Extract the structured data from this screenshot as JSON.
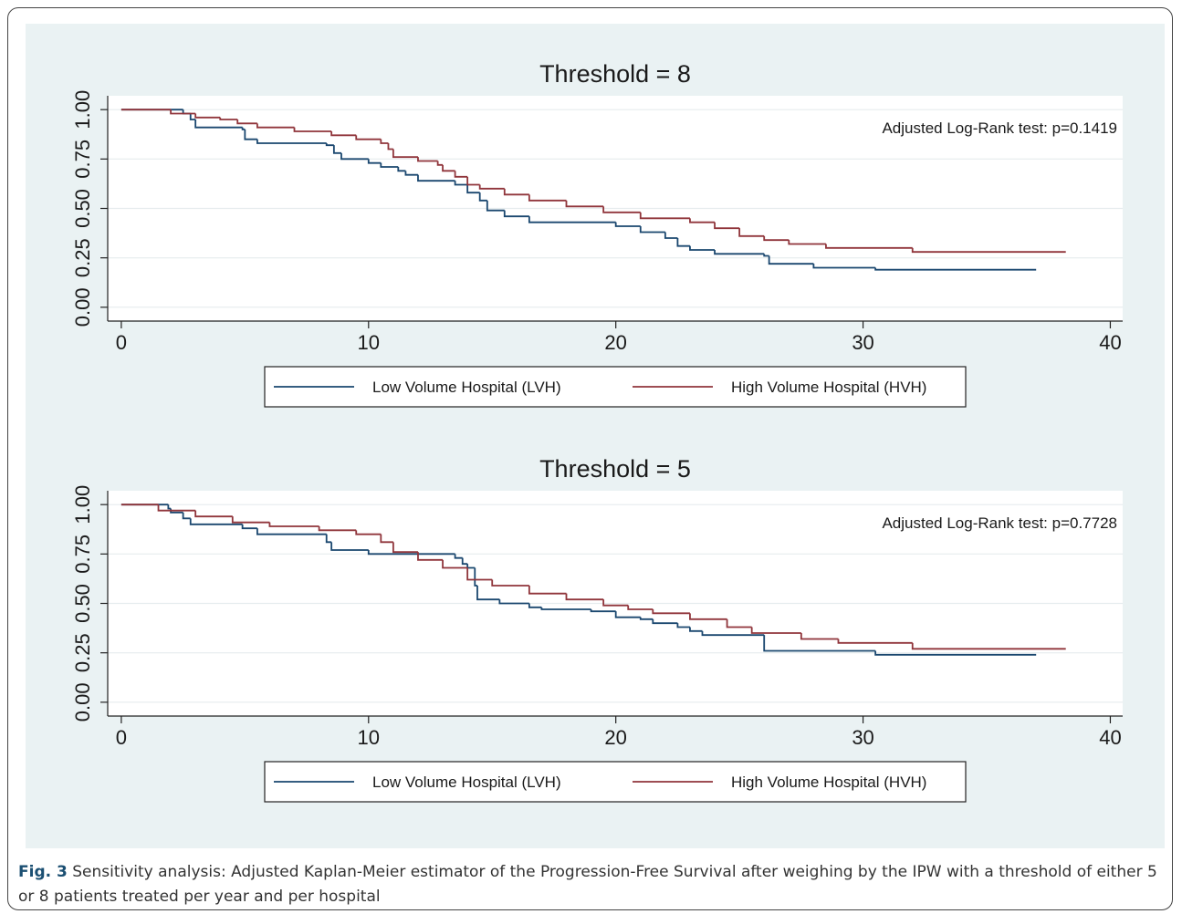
{
  "chart_data": [
    {
      "type": "step",
      "title": "Threshold = 8",
      "annotation": "Adjusted Log-Rank test: p=0.1419",
      "xlim": [
        -0.55,
        40.5
      ],
      "xticks": [
        0,
        10,
        20,
        30,
        40
      ],
      "ylim": [
        -0.07,
        1.07
      ],
      "yticks": [
        {
          "value": 0,
          "label": "0.00"
        },
        {
          "value": 0.25,
          "label": "0.25"
        },
        {
          "value": 0.5,
          "label": "0.50"
        },
        {
          "value": 0.75,
          "label": "0.75"
        },
        {
          "value": 1,
          "label": "1.00"
        }
      ],
      "grid": true,
      "legend": "bottom",
      "series": [
        {
          "name": "Low Volume Hospital (LVH)",
          "color": "#1a476f",
          "x": [
            0,
            2.5,
            2.8,
            3,
            4.9,
            5,
            5.5,
            8.3,
            8.6,
            8.9,
            10,
            10.5,
            11.2,
            11.5,
            12,
            13.5,
            14,
            14.5,
            14.8,
            15.5,
            16.5,
            20,
            21,
            22,
            22.5,
            23,
            24,
            26,
            26.2,
            28,
            30.5,
            37
          ],
          "values": [
            1.0,
            0.98,
            0.95,
            0.91,
            0.9,
            0.85,
            0.83,
            0.82,
            0.78,
            0.75,
            0.73,
            0.71,
            0.69,
            0.67,
            0.64,
            0.62,
            0.58,
            0.54,
            0.49,
            0.46,
            0.43,
            0.41,
            0.38,
            0.35,
            0.31,
            0.29,
            0.27,
            0.26,
            0.22,
            0.2,
            0.19,
            0.19
          ]
        },
        {
          "name": "High Volume Hospital (HVH)",
          "color": "#90353b",
          "x": [
            0,
            2,
            3,
            4,
            4.7,
            5.5,
            7,
            8.5,
            9.5,
            10.5,
            10.8,
            11,
            12,
            12.8,
            13,
            13.5,
            14,
            14.5,
            15.5,
            16.5,
            18,
            19.5,
            21,
            23,
            24,
            25,
            26,
            27,
            28.5,
            32,
            38.2
          ],
          "values": [
            1.0,
            0.98,
            0.96,
            0.95,
            0.93,
            0.91,
            0.89,
            0.87,
            0.85,
            0.83,
            0.8,
            0.76,
            0.74,
            0.72,
            0.69,
            0.66,
            0.62,
            0.6,
            0.57,
            0.54,
            0.51,
            0.48,
            0.45,
            0.43,
            0.4,
            0.36,
            0.34,
            0.32,
            0.3,
            0.28,
            0.28
          ]
        }
      ]
    },
    {
      "type": "step",
      "title": "Threshold = 5",
      "annotation": "Adjusted Log-Rank test: p=0.7728",
      "xlim": [
        -0.55,
        40.5
      ],
      "xticks": [
        0,
        10,
        20,
        30,
        40
      ],
      "ylim": [
        -0.07,
        1.07
      ],
      "yticks": [
        {
          "value": 0,
          "label": "0.00"
        },
        {
          "value": 0.25,
          "label": "0.25"
        },
        {
          "value": 0.5,
          "label": "0.50"
        },
        {
          "value": 0.75,
          "label": "0.75"
        },
        {
          "value": 1,
          "label": "1.00"
        }
      ],
      "grid": true,
      "legend": "bottom",
      "series": [
        {
          "name": "Low Volume Hospital (LVH)",
          "color": "#1a476f",
          "x": [
            0,
            1.9,
            2,
            2.5,
            2.8,
            4.9,
            5.5,
            8.3,
            8.5,
            10,
            13.5,
            13.8,
            14,
            14.3,
            14.4,
            15.3,
            16.5,
            17,
            19,
            20,
            21,
            21.5,
            22.5,
            23,
            23.5,
            26,
            30.5,
            37
          ],
          "values": [
            1.0,
            0.98,
            0.96,
            0.93,
            0.9,
            0.88,
            0.85,
            0.81,
            0.77,
            0.75,
            0.73,
            0.7,
            0.68,
            0.59,
            0.52,
            0.5,
            0.48,
            0.47,
            0.46,
            0.43,
            0.42,
            0.4,
            0.38,
            0.36,
            0.34,
            0.26,
            0.24,
            0.24
          ]
        },
        {
          "name": "High Volume Hospital (HVH)",
          "color": "#90353b",
          "x": [
            0,
            1.5,
            3,
            4.5,
            6,
            8,
            9.5,
            10.5,
            11,
            12,
            13,
            14,
            15,
            16.5,
            18,
            19.5,
            20.5,
            21.5,
            23,
            24.5,
            25.5,
            27.5,
            29,
            32,
            38.2
          ],
          "values": [
            1.0,
            0.97,
            0.94,
            0.91,
            0.89,
            0.87,
            0.85,
            0.81,
            0.76,
            0.72,
            0.68,
            0.62,
            0.59,
            0.55,
            0.52,
            0.49,
            0.47,
            0.45,
            0.42,
            0.38,
            0.35,
            0.32,
            0.3,
            0.27,
            0.27
          ]
        }
      ]
    }
  ],
  "caption": {
    "label": "Fig. 3",
    "text": "Sensitivity analysis: Adjusted Kaplan-Meier estimator of the Progression-Free Survival after weighing by the IPW with a threshold of either 5 or 8 patients treated per year and per hospital"
  }
}
